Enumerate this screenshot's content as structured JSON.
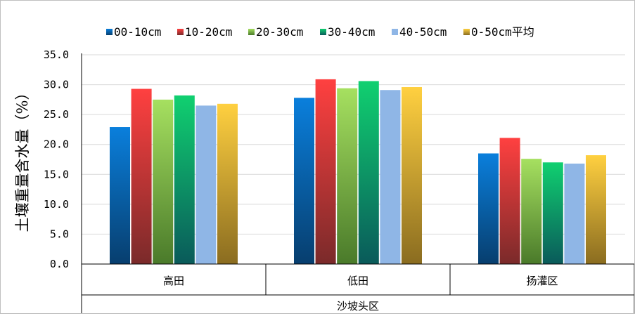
{
  "chart_data": {
    "type": "bar",
    "title": "",
    "ylabel": "土壤重量含水量（%）",
    "xgroup_label": "沙坡头区",
    "categories": [
      "高田",
      "低田",
      "扬灌区"
    ],
    "ylim": [
      0,
      35
    ],
    "ytick_step": 5,
    "yticks": [
      "0.0",
      "5.0",
      "10.0",
      "15.0",
      "20.0",
      "25.0",
      "30.0",
      "35.0"
    ],
    "grid": true,
    "legend_position": "top",
    "series": [
      {
        "name": "00-10cm",
        "color_top": "#0a7fdc",
        "color_bottom": "#073e6e",
        "values": [
          22.9,
          27.8,
          18.5
        ]
      },
      {
        "name": "10-20cm",
        "color_top": "#ff4040",
        "color_bottom": "#7a2a2a",
        "values": [
          29.3,
          30.9,
          21.1
        ]
      },
      {
        "name": "20-30cm",
        "color_top": "#a6e060",
        "color_bottom": "#4a7a2a",
        "values": [
          27.5,
          29.4,
          17.6
        ]
      },
      {
        "name": "30-40cm",
        "color_top": "#10d070",
        "color_bottom": "#0a5a5a",
        "values": [
          28.2,
          30.6,
          17.0
        ]
      },
      {
        "name": "40-50cm",
        "color_top": "#8fb6e6",
        "color_bottom": "#8fb6e6",
        "values": [
          26.5,
          29.1,
          16.8
        ]
      },
      {
        "name": "0-50cm平均",
        "color_top": "#ffd040",
        "color_bottom": "#8a6c20",
        "values": [
          26.8,
          29.6,
          18.2
        ]
      }
    ]
  }
}
